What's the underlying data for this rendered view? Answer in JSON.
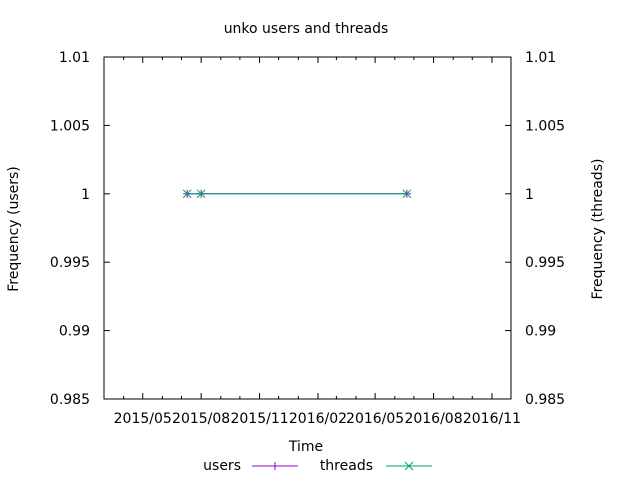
{
  "chart_data": {
    "type": "line",
    "title": "unko users and threads",
    "xlabel": "Time",
    "ylabel_left": "Frequency (users)",
    "ylabel_right": "Frequency (threads)",
    "x_type": "time",
    "xlim": [
      "2015-03-01",
      "2016-12-01"
    ],
    "x_ticks": [
      "2015-05-01",
      "2015-08-01",
      "2015-11-01",
      "2016-02-01",
      "2016-05-01",
      "2016-08-01",
      "2016-11-01"
    ],
    "x_tick_labels": [
      "2015/05",
      "2015/08",
      "2015/11",
      "2016/02",
      "2016/05",
      "2016/08",
      "2016/11"
    ],
    "ylim": [
      0.985,
      1.01
    ],
    "y_ticks": [
      0.985,
      0.99,
      0.995,
      1,
      1.005,
      1.01
    ],
    "y_tick_labels": [
      "0.985",
      "0.99",
      "0.995",
      "1",
      "1.005",
      "1.01"
    ],
    "grid": false,
    "legend_position": "bottom-center",
    "series": [
      {
        "name": "users",
        "color": "#9400d3",
        "marker": "plus",
        "points": [
          {
            "x": "2015-07-10",
            "y": 1
          },
          {
            "x": "2015-08-01",
            "y": 1
          },
          {
            "x": "2016-06-20",
            "y": 1
          }
        ]
      },
      {
        "name": "threads",
        "color": "#009e73",
        "marker": "cross",
        "points": [
          {
            "x": "2015-07-10",
            "y": 1
          },
          {
            "x": "2015-08-01",
            "y": 1
          },
          {
            "x": "2016-06-20",
            "y": 1
          }
        ]
      }
    ]
  }
}
